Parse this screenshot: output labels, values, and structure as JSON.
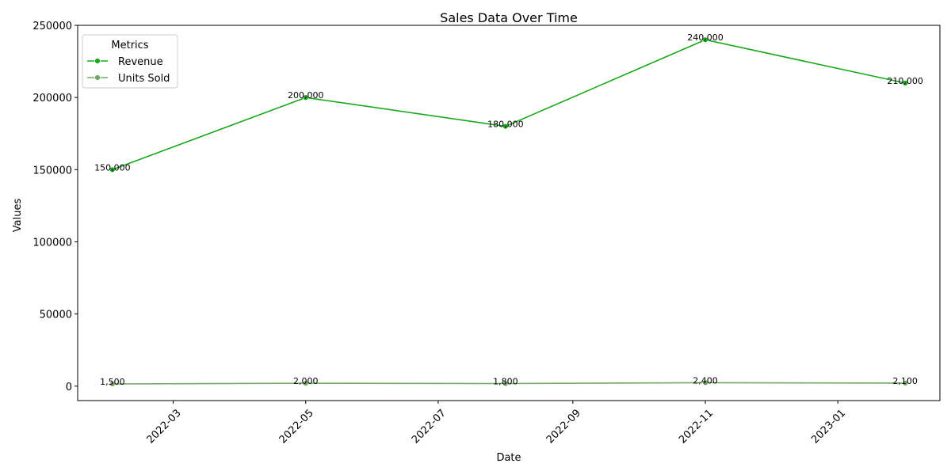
{
  "chart_data": {
    "type": "line",
    "title": "Sales Data Over Time",
    "xlabel": "Date",
    "ylabel": "Values",
    "x": [
      "2022-02-01",
      "2022-05-01",
      "2022-08-01",
      "2022-11-01",
      "2023-02-01"
    ],
    "x_ticks": [
      "2022-03",
      "2022-05",
      "2022-07",
      "2022-09",
      "2022-11",
      "2023-01"
    ],
    "x_tick_dates": [
      "2022-03-01",
      "2022-05-01",
      "2022-07-01",
      "2022-09-01",
      "2022-11-01",
      "2023-01-01"
    ],
    "xlim": [
      "2022-01-16",
      "2023-02-17"
    ],
    "y_ticks": [
      0,
      50000,
      100000,
      150000,
      200000,
      250000
    ],
    "y_tick_labels": [
      "0",
      "50000",
      "100000",
      "150000",
      "200000",
      "250000"
    ],
    "ylim": [
      -10000,
      250000
    ],
    "grid": false,
    "legend": {
      "title": "Metrics",
      "placement": "top-left"
    },
    "series": [
      {
        "name": "Revenue",
        "color": "#1aa81a",
        "values": [
          150000,
          200000,
          180000,
          240000,
          210000
        ],
        "labels": [
          "150,000",
          "200,000",
          "180,000",
          "240,000",
          "210,000"
        ]
      },
      {
        "name": "Units Sold",
        "color": "#72a863",
        "values": [
          1500,
          2000,
          1800,
          2400,
          2100
        ],
        "labels": [
          "1,500",
          "2,000",
          "1,800",
          "2,400",
          "2,100"
        ]
      }
    ]
  }
}
